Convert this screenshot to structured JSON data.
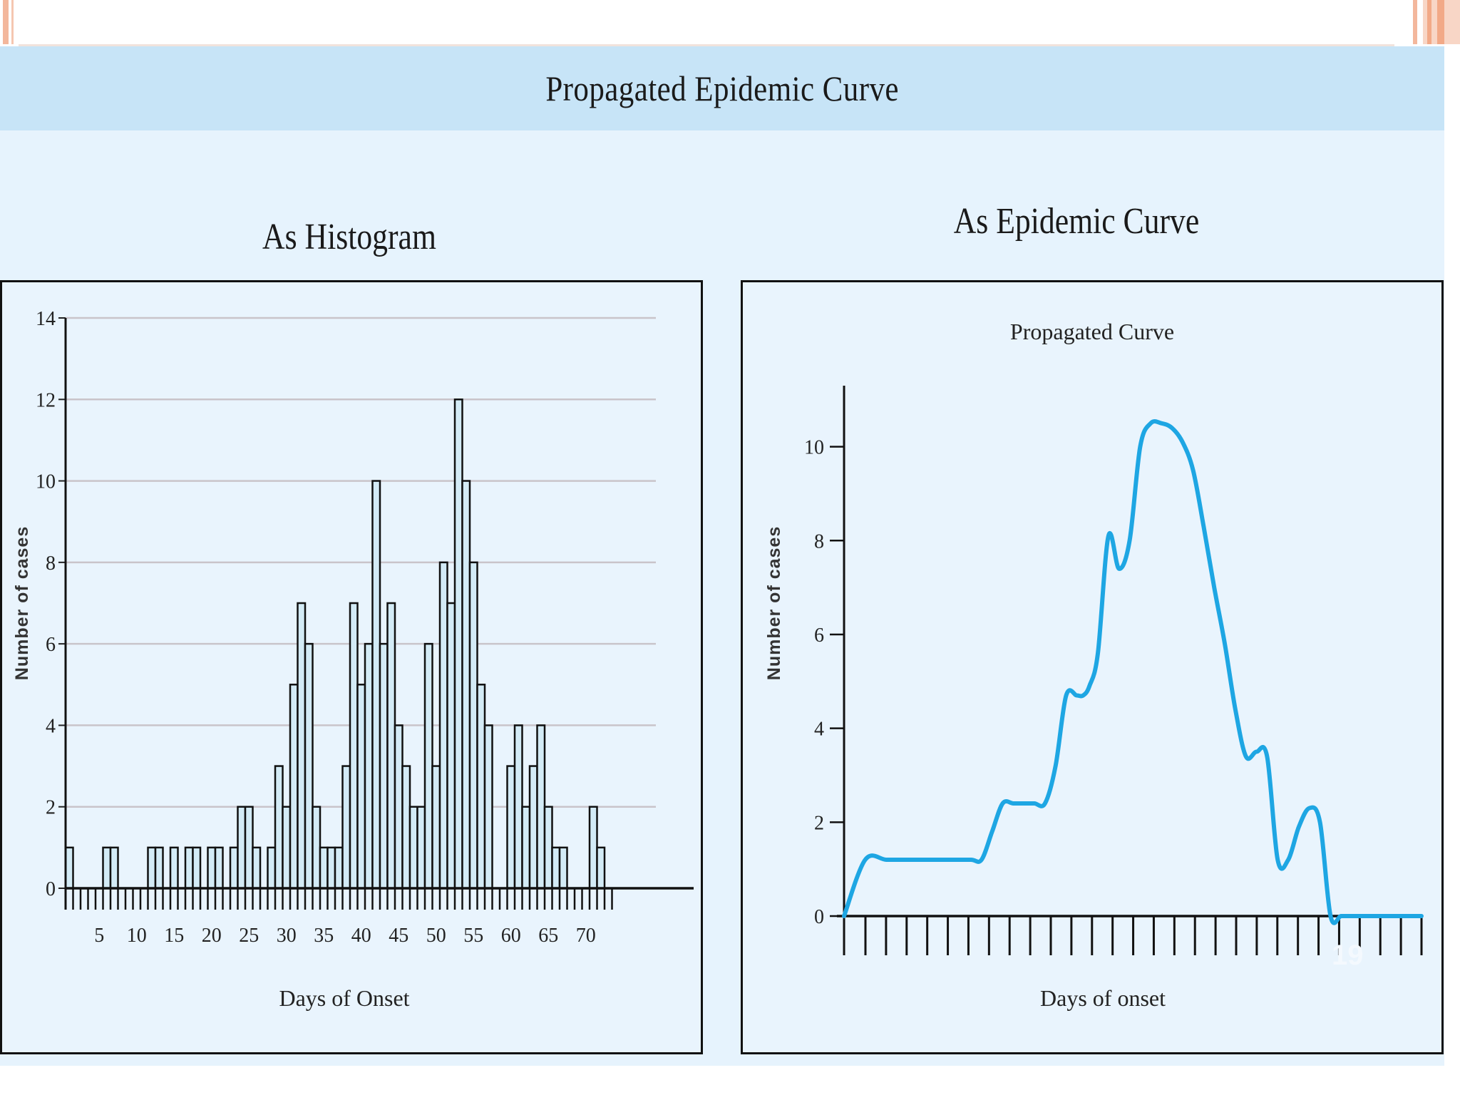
{
  "slide": {
    "title": "Propagated Epidemic Curve",
    "page_number": "19",
    "accent_color": "#f3b79c",
    "band_color": "#c7e4f7",
    "panel_color": "#e6f3fd"
  },
  "chart_data": [
    {
      "type": "bar",
      "title": "As Histogram",
      "xlabel": "Days of Onset",
      "ylabel": "Number of cases",
      "ylim": [
        0,
        14
      ],
      "yticks": [
        0,
        2,
        4,
        6,
        8,
        10,
        12,
        14
      ],
      "xticks": [
        5,
        10,
        15,
        20,
        25,
        30,
        35,
        40,
        45,
        50,
        55,
        60,
        65,
        70
      ],
      "grid": true,
      "bar_color": "#d3ebf6",
      "categories": [
        1,
        2,
        3,
        4,
        5,
        6,
        7,
        8,
        9,
        10,
        11,
        12,
        13,
        14,
        15,
        16,
        17,
        18,
        19,
        20,
        21,
        22,
        23,
        24,
        25,
        26,
        27,
        28,
        29,
        30,
        31,
        32,
        33,
        34,
        35,
        36,
        37,
        38,
        39,
        40,
        41,
        42,
        43,
        44,
        45,
        46,
        47,
        48,
        49,
        50,
        51,
        52,
        53,
        54,
        55,
        56,
        57,
        58,
        59,
        60,
        61,
        62,
        63,
        64,
        65,
        66,
        67,
        68,
        69,
        70,
        71,
        72,
        73
      ],
      "values": [
        1,
        0,
        0,
        0,
        0,
        1,
        1,
        0,
        0,
        0,
        0,
        1,
        1,
        0,
        1,
        0,
        1,
        1,
        0,
        1,
        1,
        0,
        1,
        2,
        2,
        1,
        0,
        1,
        3,
        2,
        5,
        7,
        6,
        2,
        1,
        1,
        1,
        3,
        7,
        5,
        6,
        10,
        6,
        7,
        4,
        3,
        2,
        2,
        6,
        3,
        8,
        7,
        12,
        10,
        8,
        5,
        4,
        0,
        0,
        3,
        4,
        2,
        3,
        4,
        2,
        1,
        1,
        0,
        0,
        0,
        2,
        1,
        0
      ]
    },
    {
      "type": "line",
      "title": "As Epidemic Curve",
      "subtitle": "Propagated Curve",
      "xlabel": "Days of onset",
      "ylabel": "Number of cases",
      "ylim": [
        0,
        11.3
      ],
      "yticks": [
        0,
        2,
        4,
        6,
        8,
        10
      ],
      "x_tick_count": 28,
      "line_color": "#1ea6e3",
      "series": [
        {
          "x": [
            0,
            1,
            2,
            3,
            4,
            5,
            6,
            6.5,
            7,
            7.5,
            8,
            8.5,
            9,
            9.5,
            10,
            10.5,
            11,
            11.3,
            11.6,
            12,
            12.5,
            13,
            13.5,
            14,
            14.5,
            15,
            15.5,
            16,
            16.5,
            17,
            17.5,
            18,
            18.5,
            19,
            19.5,
            20,
            20.5,
            21,
            21.5,
            22,
            22.5,
            23,
            23.5,
            24,
            24.5,
            25,
            25.5,
            26,
            26.5,
            27,
            27.3
          ],
          "y": [
            0,
            1.2,
            1.2,
            1.2,
            1.2,
            1.2,
            1.2,
            1.2,
            1.8,
            2.4,
            2.4,
            2.4,
            2.4,
            2.4,
            3.2,
            4.7,
            4.7,
            4.7,
            4.9,
            5.6,
            8.1,
            7.4,
            8.0,
            10.0,
            10.5,
            10.5,
            10.4,
            10.1,
            9.5,
            8.3,
            7.0,
            5.8,
            4.4,
            3.4,
            3.5,
            3.4,
            1.2,
            1.2,
            1.9,
            2.3,
            2.0,
            0,
            0,
            0,
            0,
            0,
            0,
            0,
            0,
            0,
            0
          ]
        }
      ]
    }
  ]
}
